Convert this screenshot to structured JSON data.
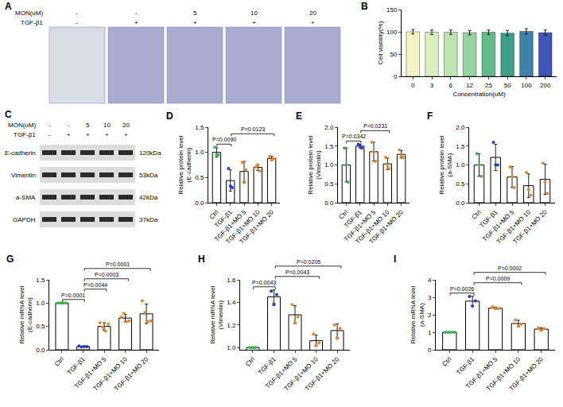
{
  "images": {
    "panel": "A",
    "header": [
      {
        "label": "MON(uM)",
        "values": [
          "-",
          "-",
          "5",
          "10",
          "20"
        ]
      },
      {
        "label": "TGF-β1",
        "values": [
          "-",
          "+",
          "+",
          "+",
          "+"
        ]
      }
    ]
  },
  "blot": {
    "panel": "C",
    "header": [
      {
        "label": "MON(uM)",
        "values": [
          "-",
          "-",
          "5",
          "10",
          "20"
        ]
      },
      {
        "label": "TGF-β1",
        "values": [
          "-",
          "+",
          "+",
          "+",
          "+"
        ]
      }
    ],
    "rows": [
      {
        "label": "E-cadherin",
        "size": "120kDa"
      },
      {
        "label": "Vimentin",
        "size": "53kDa"
      },
      {
        "label": "a-SMA",
        "size": "42kDa"
      },
      {
        "label": "GAPDH",
        "size": "37kDa"
      }
    ]
  },
  "chart_data": [
    {
      "panel": "B",
      "type": "bar",
      "categories": [
        "0",
        "3",
        "6",
        "12",
        "25",
        "50",
        "100",
        "200"
      ],
      "values": [
        100,
        99,
        99,
        98,
        99,
        97,
        101,
        98
      ],
      "errors": [
        5,
        5,
        5,
        5,
        5,
        6,
        6,
        6
      ],
      "colors": [
        "#f3f3c4",
        "#d9efbf",
        "#bfe3b1",
        "#96d3a0",
        "#63bb8b",
        "#3ea08b",
        "#3c82ab",
        "#3f55b8"
      ],
      "x_label": "Concentration(uM)",
      "y_label": "Cell viability(%)",
      "ylim": [
        0,
        150
      ],
      "yticks": [
        0,
        50,
        100,
        150
      ]
    },
    {
      "panel": "D",
      "type": "bar",
      "categories": [
        "Ctrl",
        "TGF-β1",
        "TGF-β1+MO 5",
        "TGF-β1+MO 10",
        "TGF-β1+MO 20"
      ],
      "values": [
        1.0,
        0.44,
        0.62,
        0.7,
        0.88
      ],
      "errors": [
        0.09,
        0.21,
        0.2,
        0.06,
        0.04
      ],
      "points": [
        [
          1.1,
          0.95,
          0.95
        ],
        [
          0.68,
          0.33,
          0.3
        ],
        [
          0.8,
          0.4,
          0.65
        ],
        [
          0.72,
          0.75,
          0.63
        ],
        [
          0.92,
          0.85,
          0.88
        ]
      ],
      "colors": [
        "#3cb44b",
        "#1f3fbf",
        "#e8862a",
        "#e8862a",
        "#e8862a"
      ],
      "y_label": "Relative protein level (E-cadherin)",
      "ylim": [
        0,
        1.5
      ],
      "yticks": [
        {
          "value": 0,
          "label": "0.0"
        },
        0.5,
        {
          "value": 1,
          "label": "1.0"
        },
        1.5
      ],
      "comparisons": [
        {
          "from": "Ctrl",
          "to": "TGF-β1",
          "label": "P=0.0090"
        },
        {
          "from": "TGF-β1",
          "to": "TGF-β1+MO 20",
          "label": "P=0.0123"
        }
      ]
    },
    {
      "panel": "E",
      "type": "bar",
      "categories": [
        "Ctrl",
        "TGF-β1",
        "TGF-β1+MO 5",
        "TGF-β1+MO 10",
        "TGF-β1+MO 20"
      ],
      "values": [
        1.0,
        1.5,
        1.35,
        1.03,
        1.28
      ],
      "errors": [
        0.45,
        0.05,
        0.25,
        0.15,
        0.1
      ],
      "points": [
        [
          1.45,
          1.0,
          0.55
        ],
        [
          1.55,
          1.5,
          1.45
        ],
        [
          1.6,
          1.35,
          1.1
        ],
        [
          1.2,
          1.0,
          0.9
        ],
        [
          1.4,
          1.25,
          1.2
        ]
      ],
      "colors": [
        "#3cb44b",
        "#1f3fbf",
        "#e8862a",
        "#e8862a",
        "#e8862a"
      ],
      "y_label": "Relative protein level (Vimentin)",
      "ylim": [
        0,
        2.0
      ],
      "yticks": [
        {
          "value": 0,
          "label": "0.0"
        },
        0.5,
        {
          "value": 1,
          "label": "1.0"
        },
        1.5,
        {
          "value": 2,
          "label": "2.0"
        }
      ],
      "comparisons": [
        {
          "from": "Ctrl",
          "to": "TGF-β1",
          "label": "P=0.0342"
        },
        {
          "from": "TGF-β1",
          "to": "TGF-β1+MO 10",
          "label": "P=0.0231"
        }
      ]
    },
    {
      "panel": "F",
      "type": "bar",
      "categories": [
        "Ctrl",
        "TGF-β1",
        "TGF-β1+MO 5",
        "TGF-β1+MO 10",
        "TGF-β1+MO 20"
      ],
      "values": [
        1.0,
        1.2,
        0.68,
        0.45,
        0.62
      ],
      "errors": [
        0.3,
        0.35,
        0.28,
        0.31,
        0.4
      ],
      "points": [
        [
          1.3,
          1.0,
          0.7
        ],
        [
          1.6,
          1.0,
          1.0
        ],
        [
          0.95,
          0.7,
          0.4
        ],
        [
          0.8,
          0.35,
          0.2
        ],
        [
          1.05,
          0.55,
          0.25
        ]
      ],
      "colors": [
        "#3cb44b",
        "#1f3fbf",
        "#e8862a",
        "#e8862a",
        "#e8862a"
      ],
      "y_label": "Relative protein level (a-SMA)",
      "ylim": [
        0,
        2.0
      ],
      "yticks": [
        {
          "value": 0,
          "label": "0.0"
        },
        0.5,
        {
          "value": 1,
          "label": "1.0"
        },
        1.5,
        {
          "value": 2,
          "label": "2.0"
        }
      ]
    },
    {
      "panel": "G",
      "type": "bar",
      "categories": [
        "Ctrl",
        "TGF-β1",
        "TGF-β1+MO 5",
        "TGF-β1+MO 10",
        "TGF-β1+MO 20"
      ],
      "values": [
        1.0,
        0.07,
        0.5,
        0.68,
        0.77
      ],
      "errors": [
        0.01,
        0.01,
        0.08,
        0.08,
        0.21
      ],
      "points": [
        [
          1.0,
          1.0,
          1.0,
          1.0
        ],
        [
          0.08,
          0.06,
          0.07,
          0.07
        ],
        [
          0.58,
          0.48,
          0.4,
          0.55
        ],
        [
          0.7,
          0.78,
          0.6,
          0.62
        ],
        [
          1.05,
          0.8,
          0.6,
          0.62
        ]
      ],
      "colors": [
        "#3cb44b",
        "#1f3fbf",
        "#e8862a",
        "#e8862a",
        "#e8862a"
      ],
      "y_label": "Relative mRNA level (E-cadherin)",
      "ylim": [
        0,
        1.5
      ],
      "yticks": [
        {
          "value": 0,
          "label": "0.0"
        },
        0.5,
        {
          "value": 1,
          "label": "1.0"
        },
        1.5
      ],
      "comparisons": [
        {
          "from": "Ctrl",
          "to": "TGF-β1",
          "label": "P=0.0001"
        },
        {
          "from": "TGF-β1",
          "to": "TGF-β1+MO 5",
          "label": "P=0.0044"
        },
        {
          "from": "TGF-β1",
          "to": "TGF-β1+MO 10",
          "label": "P=0.0003"
        },
        {
          "from": "TGF-β1",
          "to": "TGF-β1+MO 20",
          "label": "P=0.0001"
        }
      ]
    },
    {
      "panel": "H",
      "type": "bar",
      "categories": [
        "Ctrl",
        "TGF-β1",
        "TGF-β1+MO 5",
        "TGF-β1+MO 10",
        "TGF-β1+MO 20"
      ],
      "values": [
        1.0,
        1.45,
        1.29,
        1.06,
        1.15
      ],
      "errors": [
        0.005,
        0.06,
        0.08,
        0.05,
        0.06
      ],
      "points": [
        [
          1.0,
          1.0,
          1.0
        ],
        [
          1.5,
          1.38,
          1.47
        ],
        [
          1.38,
          1.22,
          1.27
        ],
        [
          1.12,
          1.02,
          1.04
        ],
        [
          1.2,
          1.08,
          1.17
        ]
      ],
      "colors": [
        "#3cb44b",
        "#1f3fbf",
        "#e8862a",
        "#e8862a",
        "#e8862a"
      ],
      "y_label": "Relative mRNA level (Vimentin)",
      "ylim": [
        0.98,
        1.6
      ],
      "yticks": [
        {
          "value": 1,
          "label": "1.0"
        },
        1.2,
        1.4,
        1.6
      ],
      "comparisons": [
        {
          "from": "Ctrl",
          "to": "TGF-β1",
          "label": "P=0.0043"
        },
        {
          "from": "TGF-β1",
          "to": "TGF-β1+MO 20",
          "label": "P=0.0205"
        },
        {
          "from": "TGF-β1",
          "to": "TGF-β1+MO 10",
          "label": "P=0.0043"
        }
      ]
    },
    {
      "panel": "I",
      "type": "bar",
      "categories": [
        "Ctrl",
        "TGF-β1",
        "TGF-β1+MO 5",
        "TGF-β1+MO 10",
        "TGF-β1+MO 20"
      ],
      "values": [
        1.0,
        2.78,
        2.38,
        1.5,
        1.18
      ],
      "errors": [
        0.02,
        0.28,
        0.06,
        0.18,
        0.08
      ],
      "points": [
        [
          1.0,
          1.0,
          1.0,
          1.0
        ],
        [
          3.05,
          2.5,
          2.8
        ],
        [
          2.45,
          2.35,
          2.35
        ],
        [
          1.7,
          1.35,
          1.45
        ],
        [
          1.25,
          1.1,
          1.2
        ]
      ],
      "colors": [
        "#3cb44b",
        "#1f3fbf",
        "#e8862a",
        "#e8862a",
        "#e8862a"
      ],
      "y_label": "Relative mRNA level (a-SMA)",
      "ylim": [
        0,
        4
      ],
      "yticks": [
        0,
        1,
        2,
        3,
        4
      ],
      "comparisons": [
        {
          "from": "Ctrl",
          "to": "TGF-β1",
          "label": "P=0.0026"
        },
        {
          "from": "TGF-β1",
          "to": "TGF-β1+MO 20",
          "label": "P=0.0002"
        },
        {
          "from": "TGF-β1",
          "to": "TGF-β1+MO 10",
          "label": "P=0.0009"
        }
      ]
    }
  ]
}
